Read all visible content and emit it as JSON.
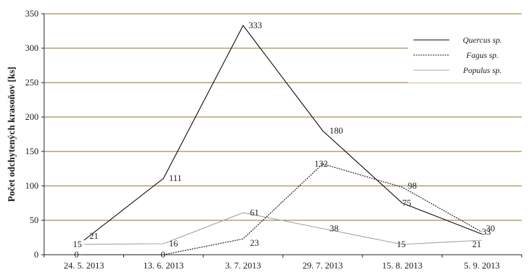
{
  "chart_data": {
    "type": "line",
    "title": "",
    "xlabel": "",
    "ylabel": "Počet odchytených krasoňov [ks]",
    "categories": [
      "24. 5. 2013",
      "13. 6. 2013",
      "3. 7. 2013",
      "29. 7. 2013",
      "15. 8. 2013",
      "5. 9. 2013"
    ],
    "ylim": [
      0,
      350
    ],
    "yticks": [
      0,
      50,
      100,
      150,
      200,
      250,
      300,
      350
    ],
    "grid": true,
    "gridColor": "#8a6d1e",
    "legend": "top-right",
    "series": [
      {
        "name": "Quercus sp.",
        "values": [
          21,
          111,
          333,
          180,
          75,
          30
        ],
        "labels": [
          "21",
          "111",
          "333",
          "180",
          "75",
          "30"
        ],
        "color": "#000000",
        "dash": "solid"
      },
      {
        "name": "Fagus sp.",
        "values": [
          0,
          0,
          23,
          132,
          98,
          33
        ],
        "labels": [
          "0",
          "0",
          "23",
          "132",
          "98",
          "33"
        ],
        "color": "#000000",
        "dash": "dotted"
      },
      {
        "name": "Populus sp.",
        "values": [
          15,
          16,
          61,
          38,
          15,
          21
        ],
        "labels": [
          "15",
          "16",
          "61",
          "38",
          "15",
          "21"
        ],
        "color": "#a0a0a0",
        "dash": "solid"
      }
    ]
  }
}
